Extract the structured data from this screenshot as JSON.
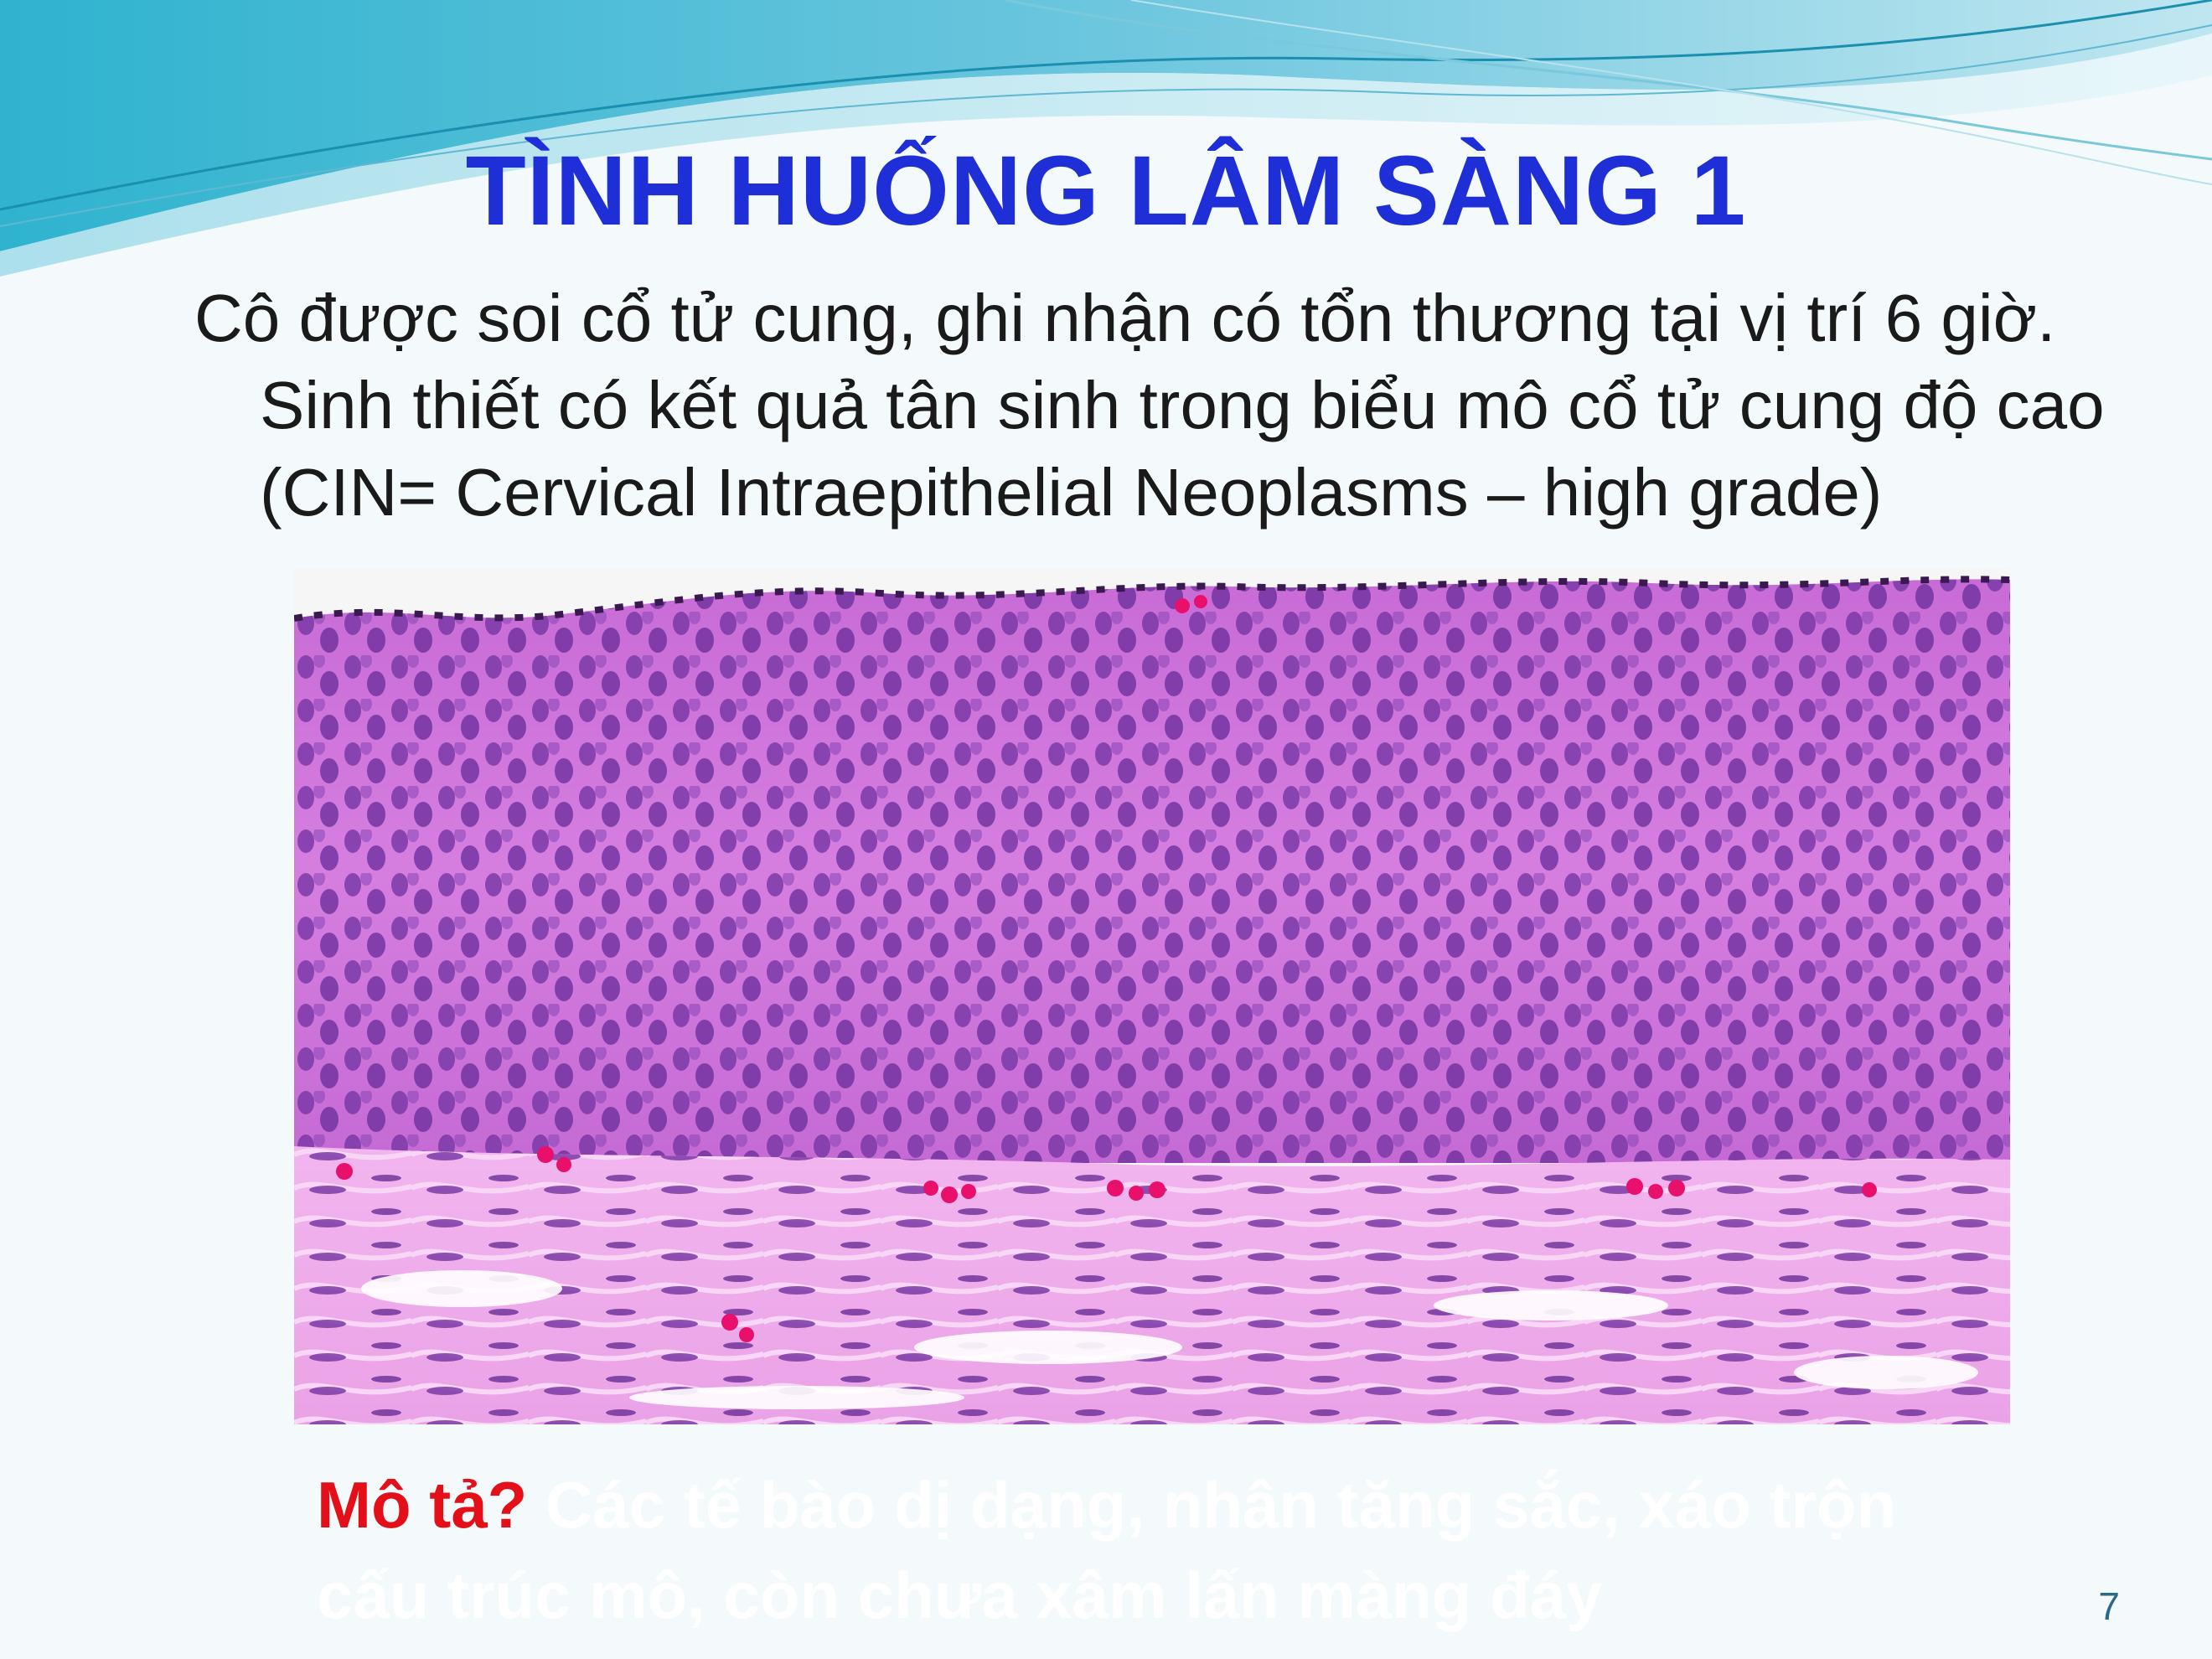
{
  "slide": {
    "title": "TÌNH HUỐNG LÂM SÀNG 1",
    "body": "Cô được soi cổ tử cung, ghi nhận có tổn thương tại vị trí 6 giờ. Sinh thiết có kết quả tân sinh trong biểu mô cổ tử cung độ cao (CIN= Cervical Intraepithelial Neoplasms – high grade)",
    "question_label": "Mô tả?",
    "answer_text": " Các tế bào dị dạng, nhân tăng sắc, xáo trộn cấu trúc mô, còn chưa xâm lấn màng đáy",
    "page_number": "7"
  },
  "colors": {
    "title": "#1f2fd8",
    "question": "#e3101a",
    "answer": "#ffffff",
    "wave_dark": "#3aa7c4",
    "wave_light": "#a9dcea",
    "background": "#f4fafb"
  },
  "image": {
    "subject": "histology-micrograph-icon"
  }
}
